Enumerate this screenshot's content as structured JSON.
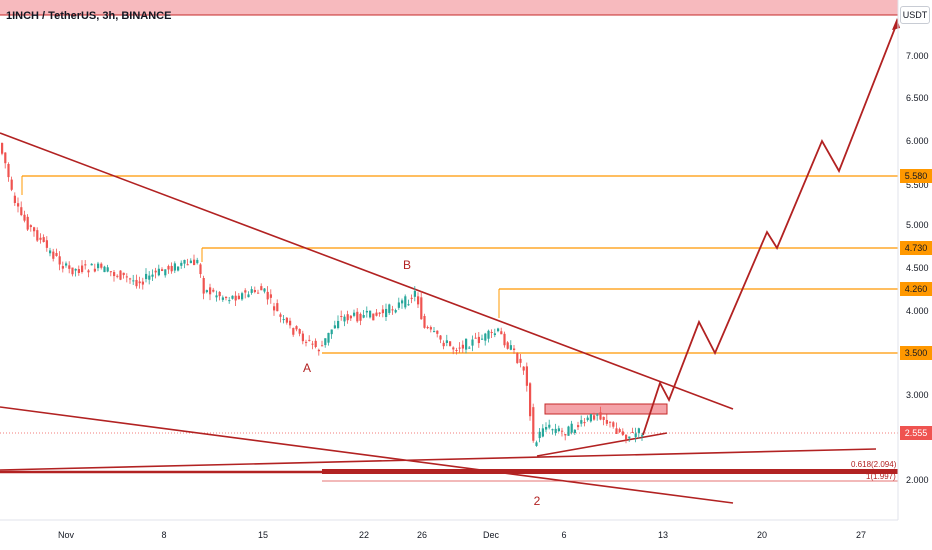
{
  "header": {
    "symbol_title": "1INCH / TetherUS, 3h, BINANCE",
    "currency": "USDT"
  },
  "price_axis": {
    "labels": [
      "7.000",
      "6.500",
      "6.000",
      "5.500",
      "5.000",
      "4.500",
      "4.000",
      "3.000",
      "2.000"
    ]
  },
  "level_tags": [
    {
      "text": "5.580",
      "bg": "#ff9800",
      "fg": "#131722"
    },
    {
      "text": "4.730",
      "bg": "#ff9800",
      "fg": "#131722"
    },
    {
      "text": "4.260",
      "bg": "#ff9800",
      "fg": "#131722"
    },
    {
      "text": "3.500",
      "bg": "#ff9800",
      "fg": "#131722"
    },
    {
      "text": "2.555",
      "bg": "#ef5350",
      "fg": "#ffffff"
    }
  ],
  "time_axis": {
    "labels": [
      "Nov",
      "8",
      "15",
      "22",
      "26",
      "Dec",
      "6",
      "13",
      "20",
      "27"
    ]
  },
  "wave_labels": [
    "B",
    "A",
    "2"
  ],
  "fib_labels": [
    "0.618(2.094)",
    "1(1.997)"
  ],
  "colors": {
    "up_candle": "#26a69a",
    "down_candle": "#ef5350",
    "level_line": "#ff9800",
    "drawing": "#b22222",
    "zone_fill": "#f4a3a8"
  }
}
